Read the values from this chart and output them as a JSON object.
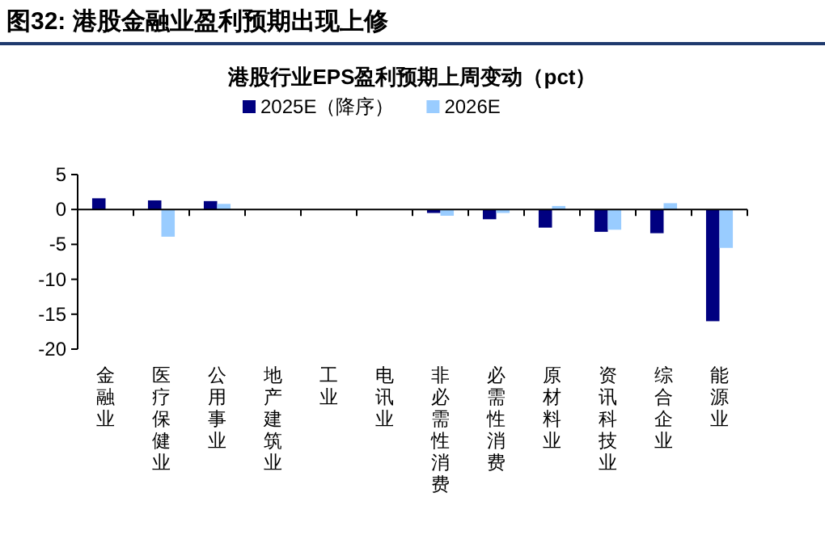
{
  "chart_data": {
    "type": "bar",
    "title": "图32:  港股金融业盈利预期出现上修",
    "subtitle": "港股行业EPS盈利预期上周变动（pct）",
    "categories": [
      "金融业",
      "医疗保健业",
      "公用事业",
      "地产建筑业",
      "工业",
      "电讯业",
      "非必需性消费",
      "必需性消费",
      "原材料业",
      "资讯科技业",
      "综合企业",
      "能源业"
    ],
    "series": [
      {
        "name": "2025E（降序）",
        "color": "#000080",
        "values": [
          1.6,
          1.3,
          1.2,
          0,
          0,
          null,
          -0.5,
          -1.4,
          -2.6,
          -3.2,
          -3.4,
          -16.0
        ]
      },
      {
        "name": "2026E",
        "color": "#99ccff",
        "values": [
          0,
          -3.9,
          0.8,
          0,
          0,
          null,
          -0.9,
          -0.5,
          0.5,
          -2.9,
          0.9,
          -5.5
        ]
      }
    ],
    "ylim": [
      -20,
      5
    ],
    "yticks": [
      -20,
      -15,
      -10,
      -5,
      0,
      5
    ],
    "legend": "top"
  }
}
